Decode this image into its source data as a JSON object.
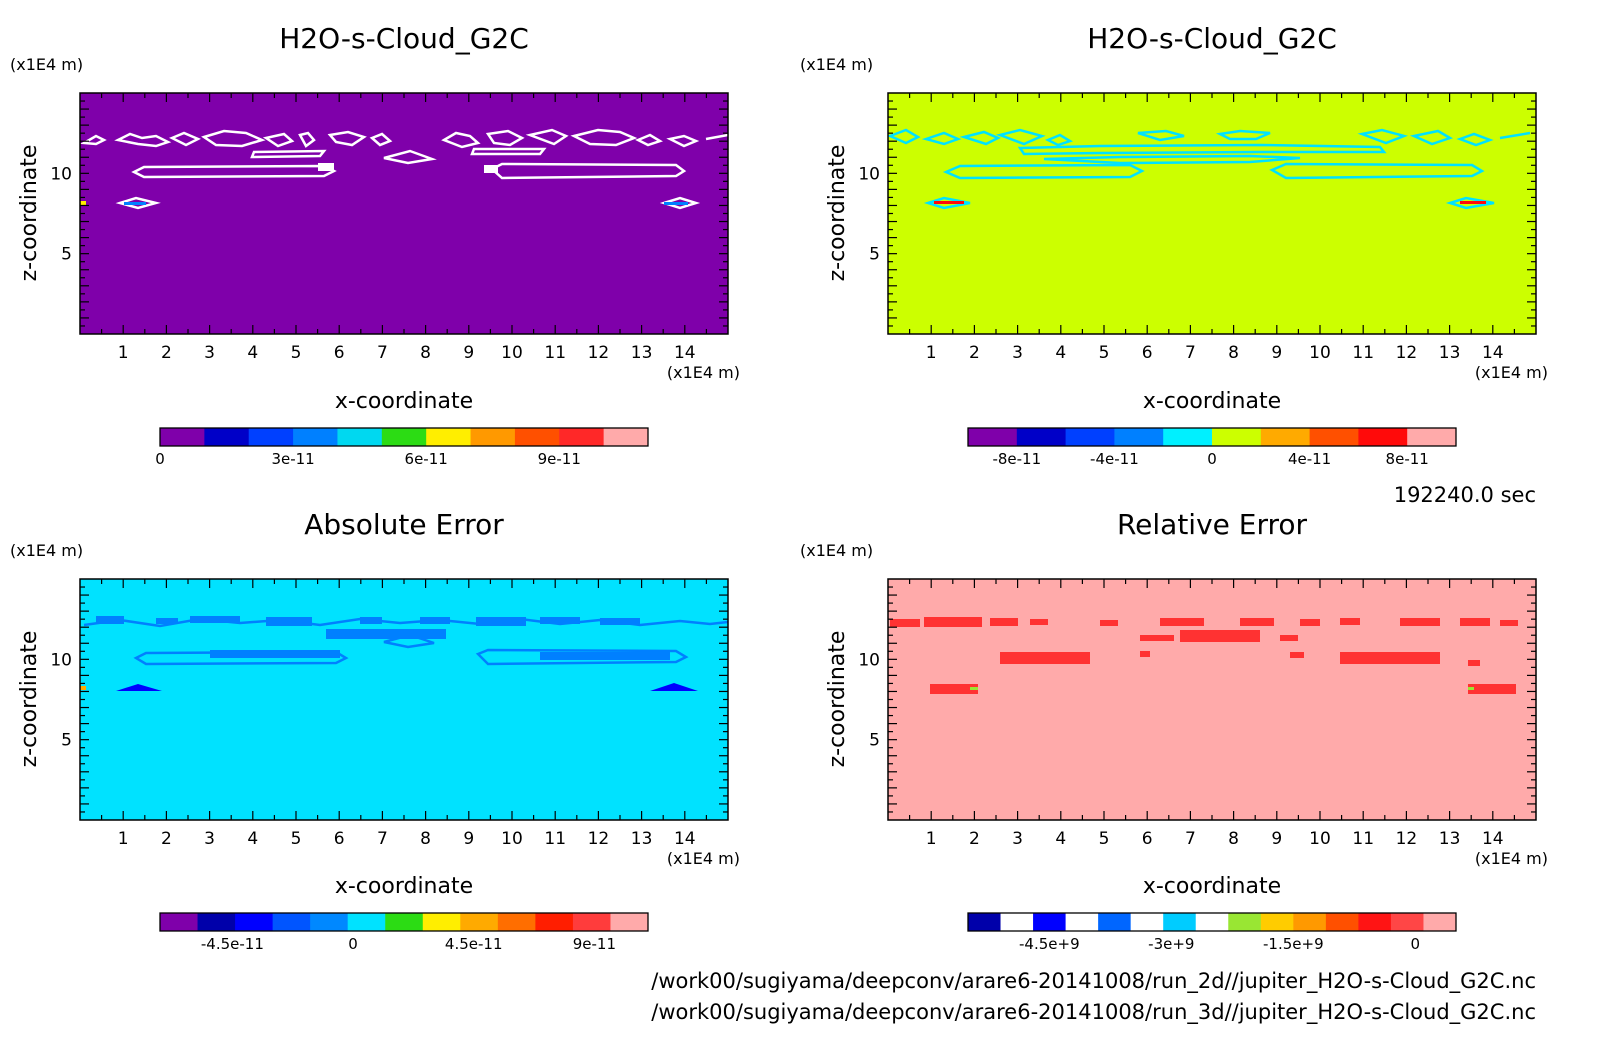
{
  "time_label": "192240.0 sec",
  "file_paths": [
    "/work00/sugiyama/deepconv/arare6-20141008/run_2d//jupiter_H2O-s-Cloud_G2C.nc",
    "/work00/sugiyama/deepconv/arare6-20141008/run_3d//jupiter_H2O-s-Cloud_G2C.nc"
  ],
  "chart_data": [
    {
      "type": "heatmap",
      "title": "H2O-s-Cloud_G2C",
      "xlabel": "x-coordinate",
      "ylabel": "z-coordinate",
      "x_unit": "(x1E4 m)",
      "y_unit": "(x1E4 m)",
      "xlim": [
        0,
        15
      ],
      "ylim": [
        0,
        15
      ],
      "x_ticks": [
        1,
        2,
        3,
        4,
        5,
        6,
        7,
        8,
        9,
        10,
        11,
        12,
        13,
        14
      ],
      "y_ticks": [
        5,
        10
      ],
      "background_color": "#7f00aa",
      "colorbar": {
        "colors": [
          "#7f00aa",
          "#0000c8",
          "#0040ff",
          "#0080ff",
          "#00d8f0",
          "#2cdc14",
          "#ffee00",
          "#ff9900",
          "#ff5000",
          "#ff2828",
          "#ffaaaa"
        ],
        "tick_labels": [
          "0",
          "3e-11",
          "6e-11",
          "9e-11"
        ],
        "tick_values": [
          0,
          3e-11,
          6e-11,
          9e-11
        ],
        "range": [
          0,
          1.1e-10
        ]
      }
    },
    {
      "type": "heatmap",
      "title": "H2O-s-Cloud_G2C",
      "xlabel": "x-coordinate",
      "ylabel": "z-coordinate",
      "x_unit": "(x1E4 m)",
      "y_unit": "(x1E4 m)",
      "xlim": [
        0,
        15
      ],
      "ylim": [
        0,
        15
      ],
      "x_ticks": [
        1,
        2,
        3,
        4,
        5,
        6,
        7,
        8,
        9,
        10,
        11,
        12,
        13,
        14
      ],
      "y_ticks": [
        5,
        10
      ],
      "background_color": "#ccff00",
      "colorbar": {
        "colors": [
          "#7f00aa",
          "#0000c8",
          "#0040ff",
          "#0080ff",
          "#00f0ff",
          "#ccff00",
          "#ffaa00",
          "#ff5000",
          "#ff0a0a",
          "#ffaaaa"
        ],
        "tick_labels": [
          "-8e-11",
          "-4e-11",
          "0",
          "4e-11",
          "8e-11"
        ],
        "tick_values": [
          -8e-11,
          -4e-11,
          0,
          4e-11,
          8e-11
        ],
        "range": [
          -1e-10,
          1e-10
        ]
      }
    },
    {
      "type": "heatmap",
      "title": "Absolute Error",
      "xlabel": "x-coordinate",
      "ylabel": "z-coordinate",
      "x_unit": "(x1E4 m)",
      "y_unit": "(x1E4 m)",
      "xlim": [
        0,
        15
      ],
      "ylim": [
        0,
        15
      ],
      "x_ticks": [
        1,
        2,
        3,
        4,
        5,
        6,
        7,
        8,
        9,
        10,
        11,
        12,
        13,
        14
      ],
      "y_ticks": [
        5,
        10
      ],
      "background_color": "#00e2ff",
      "colorbar": {
        "colors": [
          "#7f00aa",
          "#0000aa",
          "#0000ff",
          "#0055ff",
          "#0088ff",
          "#00e2ff",
          "#2cdc14",
          "#ffee00",
          "#ffaa00",
          "#ff6e00",
          "#ff1e00",
          "#ff3c3c",
          "#ffaaaa"
        ],
        "tick_labels": [
          "-4.5e-11",
          "0",
          "4.5e-11",
          "9e-11"
        ],
        "tick_values": [
          -4.5e-11,
          0,
          4.5e-11,
          9e-11
        ],
        "range": [
          -7.2e-11,
          1.1e-10
        ]
      }
    },
    {
      "type": "heatmap",
      "title": "Relative Error",
      "xlabel": "x-coordinate",
      "ylabel": "z-coordinate",
      "x_unit": "(x1E4 m)",
      "y_unit": "(x1E4 m)",
      "xlim": [
        0,
        15
      ],
      "ylim": [
        0,
        15
      ],
      "x_ticks": [
        1,
        2,
        3,
        4,
        5,
        6,
        7,
        8,
        9,
        10,
        11,
        12,
        13,
        14
      ],
      "y_ticks": [
        5,
        10
      ],
      "background_color": "#ffaaaa",
      "colorbar": {
        "colors": [
          "#0000aa",
          "#ffffff",
          "#0000ff",
          "#ffffff",
          "#0066ff",
          "#ffffff",
          "#00ccff",
          "#ffffff",
          "#99e633",
          "#ffcc00",
          "#ff9900",
          "#ff5000",
          "#ff1414",
          "#ff4646",
          "#ffaaaa"
        ],
        "tick_labels": [
          "-4.5e+9",
          "-3e+9",
          "-1.5e+9",
          "0"
        ],
        "tick_values": [
          -4500000000.0,
          -3000000000.0,
          -1500000000.0,
          0
        ],
        "range": [
          -5500000000.0,
          500000000.0
        ]
      }
    }
  ]
}
